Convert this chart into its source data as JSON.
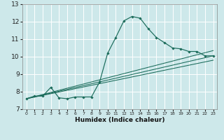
{
  "title": "",
  "xlabel": "Humidex (Indice chaleur)",
  "bg_color": "#cde8ea",
  "line_color": "#1a6b5a",
  "grid_color": "#ffffff",
  "xlim": [
    -0.5,
    23.5
  ],
  "ylim": [
    7,
    13
  ],
  "x_ticks": [
    0,
    1,
    2,
    3,
    4,
    5,
    6,
    7,
    8,
    9,
    10,
    11,
    12,
    13,
    14,
    15,
    16,
    17,
    18,
    19,
    20,
    21,
    22,
    23
  ],
  "y_ticks": [
    7,
    8,
    9,
    10,
    11,
    12,
    13
  ],
  "line1_x": [
    0,
    1,
    2,
    3,
    4,
    5,
    6,
    7,
    8,
    9,
    10,
    11,
    12,
    13,
    14,
    15,
    16,
    17,
    18,
    19,
    20,
    21,
    22,
    23
  ],
  "line1_y": [
    7.6,
    7.75,
    7.75,
    8.25,
    7.65,
    7.6,
    7.7,
    7.7,
    7.7,
    8.55,
    10.2,
    11.1,
    12.05,
    12.3,
    12.2,
    11.6,
    11.1,
    10.8,
    10.5,
    10.45,
    10.3,
    10.3,
    10.05,
    10.05
  ],
  "line2_x": [
    0,
    23
  ],
  "line2_y": [
    7.6,
    10.05
  ],
  "line3_x": [
    0,
    23
  ],
  "line3_y": [
    7.6,
    10.35
  ],
  "line4_x": [
    0,
    23
  ],
  "line4_y": [
    7.6,
    9.8
  ]
}
